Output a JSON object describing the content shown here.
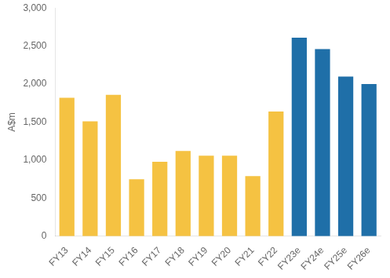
{
  "chart_data": {
    "type": "bar",
    "ylabel": "A$m",
    "categories": [
      "FY13",
      "FY14",
      "FY15",
      "FY16",
      "FY17",
      "FY18",
      "FY19",
      "FY20",
      "FY21",
      "FY22",
      "FY23e",
      "FY24e",
      "FY25e",
      "FY26e"
    ],
    "values": [
      1820,
      1510,
      1860,
      750,
      980,
      1120,
      1060,
      1060,
      790,
      1640,
      2610,
      2460,
      2100,
      2000
    ],
    "colors": [
      "#F5C242",
      "#F5C242",
      "#F5C242",
      "#F5C242",
      "#F5C242",
      "#F5C242",
      "#F5C242",
      "#F5C242",
      "#F5C242",
      "#F5C242",
      "#1F6FA8",
      "#1F6FA8",
      "#1F6FA8",
      "#1F6FA8"
    ],
    "ylim": [
      0,
      3000
    ],
    "yticks": [
      0,
      500,
      {
        "value": 1000,
        "label": "1,000"
      },
      {
        "value": 1500,
        "label": "1,500"
      },
      {
        "value": 2000,
        "label": "2,000"
      },
      {
        "value": 2500,
        "label": "2,500"
      },
      {
        "value": 3000,
        "label": "3,000"
      }
    ],
    "grid": false
  }
}
